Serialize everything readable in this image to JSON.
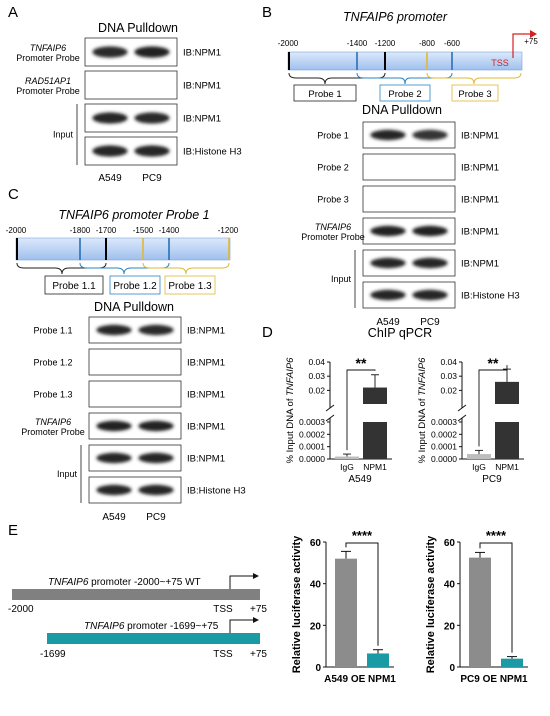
{
  "panelA": {
    "letter": "A",
    "title": "DNA Pulldown",
    "rows": [
      {
        "label": "TNFAIP6",
        "label2": "Promoter Probe",
        "ib": "IB:NPM1",
        "bands": [
          0.75,
          0.85
        ]
      },
      {
        "label": "RAD51AP1",
        "label2": "Promoter Probe",
        "ib": "IB:NPM1",
        "bands": [
          0,
          0
        ]
      },
      {
        "label": "",
        "label2": "",
        "ib": "IB:NPM1",
        "bands": [
          0.8,
          0.75
        ]
      },
      {
        "label": "",
        "label2": "",
        "ib": "IB:Histone H3",
        "bands": [
          0.8,
          0.8
        ]
      }
    ],
    "input_label": "Input",
    "lanes": [
      "A549",
      "PC9"
    ]
  },
  "panelB": {
    "letter": "B",
    "title": "TNFAIP6 promoter",
    "coords": [
      "-2000",
      "-1400",
      "-1200",
      "-800",
      "-600",
      "+75"
    ],
    "tss": "TSS",
    "probes": [
      "Probe 1",
      "Probe 2",
      "Probe 3"
    ],
    "blot_title": "DNA Pulldown",
    "rows": [
      {
        "label": "Probe 1",
        "label2": "",
        "ib": "IB:NPM1",
        "bands": [
          0.8,
          0.65
        ]
      },
      {
        "label": "Probe 2",
        "label2": "",
        "ib": "IB:NPM1",
        "bands": [
          0,
          0
        ]
      },
      {
        "label": "Probe 3",
        "label2": "",
        "ib": "IB:NPM1",
        "bands": [
          0,
          0
        ]
      },
      {
        "label": "TNFAIP6",
        "label2": "Promoter Probe",
        "ib": "IB:NPM1",
        "bands": [
          0.85,
          0.85
        ]
      },
      {
        "label": "",
        "label2": "",
        "ib": "IB:NPM1",
        "bands": [
          0.8,
          0.8
        ]
      },
      {
        "label": "",
        "label2": "",
        "ib": "IB:Histone H3",
        "bands": [
          0.8,
          0.8
        ]
      }
    ],
    "input_label": "Input",
    "lanes": [
      "A549",
      "PC9"
    ]
  },
  "panelC": {
    "letter": "C",
    "title": "TNFAIP6 promoter Probe 1",
    "coords": [
      "-2000",
      "-1800",
      "-1700",
      "-1500",
      "-1400",
      "-1200"
    ],
    "probes": [
      "Probe 1.1",
      "Probe 1.2",
      "Probe 1.3"
    ],
    "blot_title": "DNA Pulldown",
    "rows": [
      {
        "label": "Probe 1.1",
        "label2": "",
        "ib": "IB:NPM1",
        "bands": [
          0.8,
          0.75
        ]
      },
      {
        "label": "Probe 1.2",
        "label2": "",
        "ib": "IB:NPM1",
        "bands": [
          0,
          0
        ]
      },
      {
        "label": "Probe 1.3",
        "label2": "",
        "ib": "IB:NPM1",
        "bands": [
          0,
          0
        ]
      },
      {
        "label": "TNFAIP6",
        "label2": "Promoter Probe",
        "ib": "IB:NPM1",
        "bands": [
          0.85,
          0.85
        ]
      },
      {
        "label": "",
        "label2": "",
        "ib": "IB:NPM1",
        "bands": [
          0.8,
          0.8
        ]
      },
      {
        "label": "",
        "label2": "",
        "ib": "IB:Histone H3",
        "bands": [
          0.8,
          0.8
        ]
      }
    ],
    "input_label": "Input",
    "lanes": [
      "A549",
      "PC9"
    ]
  },
  "panelD": {
    "letter": "D",
    "title": "ChIP qPCR",
    "ylabel_prefix": "% Input DNA of ",
    "ylabel_gene": "TNFAIP6",
    "colors": {
      "igg": "#bdbdbd",
      "npm1": "#333333"
    },
    "chart_data": [
      {
        "type": "bar",
        "xlabel": "A549",
        "categories": [
          "IgG",
          "NPM1"
        ],
        "values": [
          2e-05,
          0.022
        ],
        "errors": [
          2e-05,
          0.009
        ],
        "significance": "**",
        "yticks_low": [
          "0.0000",
          "0.0001",
          "0.0002",
          "0.0003"
        ],
        "yticks_high": [
          "0.02",
          "0.03",
          "0.04"
        ]
      },
      {
        "type": "bar",
        "xlabel": "PC9",
        "categories": [
          "IgG",
          "NPM1"
        ],
        "values": [
          4e-05,
          0.026
        ],
        "errors": [
          3e-05,
          0.009
        ],
        "significance": "**",
        "yticks_low": [
          "0.0000",
          "0.0001",
          "0.0002",
          "0.0003"
        ],
        "yticks_high": [
          "0.02",
          "0.03",
          "0.04"
        ]
      }
    ]
  },
  "panelE": {
    "letter": "E",
    "gene": "TNFAIP6",
    "construct1": {
      "label": " promoter  -2000~+75 WT",
      "start": "-2000",
      "tss": "TSS",
      "end": "+75",
      "color": "#808080"
    },
    "construct2": {
      "label": " promoter  -1699~+75",
      "start": "-1699",
      "tss": "TSS",
      "end": "+75",
      "color": "#1a9aa5"
    },
    "colors": {
      "wt": "#8c8c8c",
      "trunc": "#1a9aa5"
    },
    "chart_data": [
      {
        "type": "bar",
        "xlabel": "A549 OE NPM1",
        "ylabel": "Relative luciferase activity",
        "ylim": [
          0,
          60
        ],
        "yticks": [
          "0",
          "20",
          "40",
          "60"
        ],
        "values": [
          52,
          6.5
        ],
        "errors": [
          3.5,
          1.8
        ],
        "significance": "****"
      },
      {
        "type": "bar",
        "xlabel": "PC9 OE NPM1",
        "ylabel": "Relative luciferase activity",
        "ylim": [
          0,
          60
        ],
        "yticks": [
          "0",
          "20",
          "40",
          "60"
        ],
        "values": [
          52.5,
          4
        ],
        "errors": [
          2.5,
          1
        ],
        "significance": "****"
      }
    ]
  }
}
